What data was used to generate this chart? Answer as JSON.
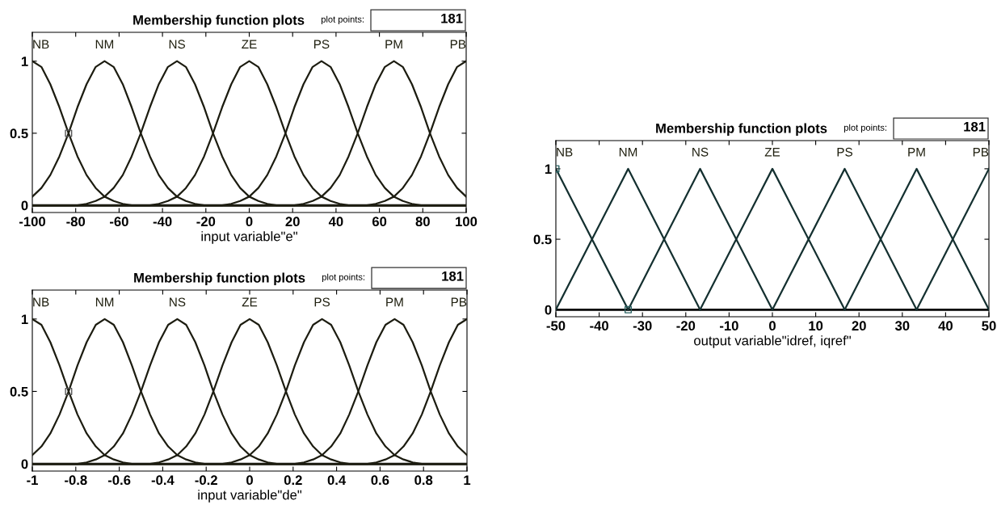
{
  "chart_data": [
    {
      "type": "line",
      "title": "Membership function plots",
      "xlabel": "input variable\"e\"",
      "annotations": [
        "plot points:",
        "181"
      ],
      "xlim": [
        -100,
        100
      ],
      "xticks": [
        -100,
        -80,
        -60,
        -40,
        -20,
        0,
        20,
        40,
        60,
        80,
        100
      ],
      "ylim": [
        -0.05,
        1.2
      ],
      "yticks": [
        0,
        0.5,
        1
      ],
      "grid": false,
      "legend": false,
      "marker": "none",
      "line_style": "solid",
      "ref_lines": [
        {
          "axis": "y",
          "value": 0,
          "label": null,
          "color": "#000000"
        }
      ],
      "x": [
        -100,
        -95.8,
        -91.7,
        -87.5,
        -83.3,
        -79.2,
        -75,
        -70.8,
        -66.7,
        -62.5,
        -58.3,
        -54.2,
        -50,
        -45.8,
        -41.7,
        -37.5,
        -33.3,
        -29.2,
        -25,
        -20.8,
        -16.7,
        -12.5,
        -8.3,
        -4.2,
        0,
        4.2,
        8.3,
        12.5,
        16.7,
        20.8,
        25,
        29.2,
        33.3,
        37.5,
        41.7,
        45.8,
        50,
        54.2,
        58.3,
        62.5,
        66.7,
        70.8,
        75,
        79.2,
        83.3,
        87.5,
        91.7,
        95.8,
        100
      ],
      "series": [
        {
          "name": "NB",
          "color": "#1c1c10",
          "values": [
            1,
            0.96,
            0.84,
            0.68,
            0.5,
            0.34,
            0.21,
            0.12,
            0.06,
            0.03,
            0.01,
            0,
            0,
            0,
            0,
            0,
            0,
            0,
            0,
            0,
            0,
            0,
            0,
            0,
            0,
            0,
            0,
            0,
            0,
            0,
            0,
            0,
            0,
            0,
            0,
            0,
            0,
            0,
            0,
            0,
            0,
            0,
            0,
            0,
            0,
            0,
            0,
            0,
            0
          ]
        },
        {
          "name": "NM",
          "color": "#1c1c10",
          "values": [
            0.06,
            0.12,
            0.21,
            0.34,
            0.5,
            0.68,
            0.84,
            0.96,
            1,
            0.96,
            0.84,
            0.68,
            0.5,
            0.34,
            0.21,
            0.12,
            0.06,
            0.03,
            0.01,
            0,
            0,
            0,
            0,
            0,
            0,
            0,
            0,
            0,
            0,
            0,
            0,
            0,
            0,
            0,
            0,
            0,
            0,
            0,
            0,
            0,
            0,
            0,
            0,
            0,
            0,
            0,
            0,
            0,
            0
          ]
        },
        {
          "name": "NS",
          "color": "#1c1c10",
          "values": [
            0,
            0,
            0,
            0,
            0,
            0,
            0.01,
            0.03,
            0.06,
            0.12,
            0.21,
            0.34,
            0.5,
            0.68,
            0.84,
            0.96,
            1,
            0.96,
            0.84,
            0.68,
            0.5,
            0.34,
            0.21,
            0.12,
            0.06,
            0.03,
            0.01,
            0,
            0,
            0,
            0,
            0,
            0,
            0,
            0,
            0,
            0,
            0,
            0,
            0,
            0,
            0,
            0,
            0,
            0,
            0,
            0,
            0,
            0
          ]
        },
        {
          "name": "ZE",
          "color": "#1c1c10",
          "values": [
            0,
            0,
            0,
            0,
            0,
            0,
            0,
            0,
            0,
            0,
            0,
            0,
            0,
            0,
            0.01,
            0.03,
            0.06,
            0.12,
            0.21,
            0.34,
            0.5,
            0.68,
            0.84,
            0.96,
            1,
            0.96,
            0.84,
            0.68,
            0.5,
            0.34,
            0.21,
            0.12,
            0.06,
            0.03,
            0.01,
            0,
            0,
            0,
            0,
            0,
            0,
            0,
            0,
            0,
            0,
            0,
            0,
            0,
            0
          ]
        },
        {
          "name": "PS",
          "color": "#1c1c10",
          "values": [
            0,
            0,
            0,
            0,
            0,
            0,
            0,
            0,
            0,
            0,
            0,
            0,
            0,
            0,
            0,
            0,
            0,
            0,
            0,
            0,
            0,
            0,
            0.01,
            0.03,
            0.06,
            0.12,
            0.21,
            0.34,
            0.5,
            0.68,
            0.84,
            0.96,
            1,
            0.96,
            0.84,
            0.68,
            0.5,
            0.34,
            0.21,
            0.12,
            0.06,
            0.03,
            0.01,
            0,
            0,
            0,
            0,
            0,
            0
          ]
        },
        {
          "name": "PM",
          "color": "#1c1c10",
          "values": [
            0,
            0,
            0,
            0,
            0,
            0,
            0,
            0,
            0,
            0,
            0,
            0,
            0,
            0,
            0,
            0,
            0,
            0,
            0,
            0,
            0,
            0,
            0,
            0,
            0,
            0,
            0,
            0,
            0,
            0,
            0.01,
            0.03,
            0.06,
            0.12,
            0.21,
            0.34,
            0.5,
            0.68,
            0.84,
            0.96,
            1,
            0.96,
            0.84,
            0.68,
            0.5,
            0.34,
            0.21,
            0.12,
            0.06
          ]
        },
        {
          "name": "PB",
          "color": "#1c1c10",
          "values": [
            0,
            0,
            0,
            0,
            0,
            0,
            0,
            0,
            0,
            0,
            0,
            0,
            0,
            0,
            0,
            0,
            0,
            0,
            0,
            0,
            0,
            0,
            0,
            0,
            0,
            0,
            0,
            0,
            0,
            0,
            0,
            0,
            0,
            0,
            0,
            0,
            0,
            0,
            0.01,
            0.03,
            0.06,
            0.12,
            0.21,
            0.34,
            0.5,
            0.68,
            0.84,
            0.96,
            1
          ]
        },
        {
          "type": "scatter",
          "marker": "square",
          "color": "#555555",
          "x": [
            -83.3
          ],
          "values": [
            0.5
          ]
        }
      ]
    },
    {
      "type": "line",
      "title": "Membership function plots",
      "xlabel": "input variable\"de\"",
      "annotations": [
        "plot points:",
        "181"
      ],
      "xlim": [
        -1,
        1
      ],
      "xticks": [
        -1,
        -0.8,
        -0.6,
        -0.4,
        -0.2,
        0,
        0.2,
        0.4,
        0.6,
        0.8,
        1
      ],
      "ylim": [
        -0.05,
        1.2
      ],
      "yticks": [
        0,
        0.5,
        1
      ],
      "grid": false,
      "legend": false,
      "marker": "none",
      "line_style": "solid",
      "ref_lines": [
        {
          "axis": "y",
          "value": 0,
          "label": null,
          "color": "#000000"
        }
      ],
      "x": [
        -1,
        -0.958,
        -0.917,
        -0.875,
        -0.833,
        -0.792,
        -0.75,
        -0.708,
        -0.667,
        -0.625,
        -0.583,
        -0.542,
        -0.5,
        -0.458,
        -0.417,
        -0.375,
        -0.333,
        -0.292,
        -0.25,
        -0.208,
        -0.167,
        -0.125,
        -0.083,
        -0.042,
        0,
        0.042,
        0.083,
        0.125,
        0.167,
        0.208,
        0.25,
        0.292,
        0.333,
        0.375,
        0.417,
        0.458,
        0.5,
        0.542,
        0.583,
        0.625,
        0.667,
        0.708,
        0.75,
        0.792,
        0.833,
        0.875,
        0.917,
        0.958,
        1
      ],
      "series": [
        {
          "name": "NB",
          "color": "#1c1c10",
          "values": [
            1,
            0.96,
            0.84,
            0.68,
            0.5,
            0.34,
            0.21,
            0.12,
            0.06,
            0.03,
            0.01,
            0,
            0,
            0,
            0,
            0,
            0,
            0,
            0,
            0,
            0,
            0,
            0,
            0,
            0,
            0,
            0,
            0,
            0,
            0,
            0,
            0,
            0,
            0,
            0,
            0,
            0,
            0,
            0,
            0,
            0,
            0,
            0,
            0,
            0,
            0,
            0,
            0,
            0
          ]
        },
        {
          "name": "NM",
          "color": "#1c1c10",
          "values": [
            0.06,
            0.12,
            0.21,
            0.34,
            0.5,
            0.68,
            0.84,
            0.96,
            1,
            0.96,
            0.84,
            0.68,
            0.5,
            0.34,
            0.21,
            0.12,
            0.06,
            0.03,
            0.01,
            0,
            0,
            0,
            0,
            0,
            0,
            0,
            0,
            0,
            0,
            0,
            0,
            0,
            0,
            0,
            0,
            0,
            0,
            0,
            0,
            0,
            0,
            0,
            0,
            0,
            0,
            0,
            0,
            0,
            0
          ]
        },
        {
          "name": "NS",
          "color": "#1c1c10",
          "values": [
            0,
            0,
            0,
            0,
            0,
            0,
            0.01,
            0.03,
            0.06,
            0.12,
            0.21,
            0.34,
            0.5,
            0.68,
            0.84,
            0.96,
            1,
            0.96,
            0.84,
            0.68,
            0.5,
            0.34,
            0.21,
            0.12,
            0.06,
            0.03,
            0.01,
            0,
            0,
            0,
            0,
            0,
            0,
            0,
            0,
            0,
            0,
            0,
            0,
            0,
            0,
            0,
            0,
            0,
            0,
            0,
            0,
            0,
            0
          ]
        },
        {
          "name": "ZE",
          "color": "#1c1c10",
          "values": [
            0,
            0,
            0,
            0,
            0,
            0,
            0,
            0,
            0,
            0,
            0,
            0,
            0,
            0,
            0.01,
            0.03,
            0.06,
            0.12,
            0.21,
            0.34,
            0.5,
            0.68,
            0.84,
            0.96,
            1,
            0.96,
            0.84,
            0.68,
            0.5,
            0.34,
            0.21,
            0.12,
            0.06,
            0.03,
            0.01,
            0,
            0,
            0,
            0,
            0,
            0,
            0,
            0,
            0,
            0,
            0,
            0,
            0,
            0
          ]
        },
        {
          "name": "PS",
          "color": "#1c1c10",
          "values": [
            0,
            0,
            0,
            0,
            0,
            0,
            0,
            0,
            0,
            0,
            0,
            0,
            0,
            0,
            0,
            0,
            0,
            0,
            0,
            0,
            0,
            0,
            0.01,
            0.03,
            0.06,
            0.12,
            0.21,
            0.34,
            0.5,
            0.68,
            0.84,
            0.96,
            1,
            0.96,
            0.84,
            0.68,
            0.5,
            0.34,
            0.21,
            0.12,
            0.06,
            0.03,
            0.01,
            0,
            0,
            0,
            0,
            0,
            0
          ]
        },
        {
          "name": "PM",
          "color": "#1c1c10",
          "values": [
            0,
            0,
            0,
            0,
            0,
            0,
            0,
            0,
            0,
            0,
            0,
            0,
            0,
            0,
            0,
            0,
            0,
            0,
            0,
            0,
            0,
            0,
            0,
            0,
            0,
            0,
            0,
            0,
            0,
            0,
            0.01,
            0.03,
            0.06,
            0.12,
            0.21,
            0.34,
            0.5,
            0.68,
            0.84,
            0.96,
            1,
            0.96,
            0.84,
            0.68,
            0.5,
            0.34,
            0.21,
            0.12,
            0.06
          ]
        },
        {
          "name": "PB",
          "color": "#1c1c10",
          "values": [
            0,
            0,
            0,
            0,
            0,
            0,
            0,
            0,
            0,
            0,
            0,
            0,
            0,
            0,
            0,
            0,
            0,
            0,
            0,
            0,
            0,
            0,
            0,
            0,
            0,
            0,
            0,
            0,
            0,
            0,
            0,
            0,
            0,
            0,
            0,
            0,
            0,
            0,
            0.01,
            0.03,
            0.06,
            0.12,
            0.21,
            0.34,
            0.5,
            0.68,
            0.84,
            0.96,
            1
          ]
        },
        {
          "type": "scatter",
          "marker": "square",
          "color": "#555555",
          "x": [
            -0.833
          ],
          "values": [
            0.5
          ]
        }
      ]
    },
    {
      "type": "line",
      "title": "Membership function plots",
      "xlabel": "output variable\"idref, iqref\"",
      "annotations": [
        "plot points:",
        "181"
      ],
      "xlim": [
        -50,
        50
      ],
      "xticks": [
        -50,
        -40,
        -30,
        -20,
        -10,
        0,
        10,
        20,
        30,
        40,
        50
      ],
      "ylim": [
        -0.05,
        1.2
      ],
      "yticks": [
        0,
        0.5,
        1
      ],
      "grid": false,
      "legend": false,
      "marker": "none",
      "line_style": "solid",
      "ref_lines": [
        {
          "axis": "y",
          "value": 0,
          "label": null,
          "color": "#000000"
        }
      ],
      "series": [
        {
          "name": "NB",
          "color": "#143030",
          "x": [
            -50,
            -33.3
          ],
          "values": [
            1,
            0
          ]
        },
        {
          "name": "NM",
          "color": "#143030",
          "x": [
            -50,
            -33.3,
            -16.7
          ],
          "values": [
            0,
            1,
            0
          ]
        },
        {
          "name": "NS",
          "color": "#143030",
          "x": [
            -33.3,
            -16.7,
            0
          ],
          "values": [
            0,
            1,
            0
          ]
        },
        {
          "name": "ZE",
          "color": "#143030",
          "x": [
            -16.7,
            0,
            16.7
          ],
          "values": [
            0,
            1,
            0
          ]
        },
        {
          "name": "PS",
          "color": "#143030",
          "x": [
            0,
            16.7,
            33.3
          ],
          "values": [
            0,
            1,
            0
          ]
        },
        {
          "name": "PM",
          "color": "#143030",
          "x": [
            16.7,
            33.3,
            50
          ],
          "values": [
            0,
            1,
            0
          ]
        },
        {
          "name": "PB",
          "color": "#143030",
          "x": [
            33.3,
            50
          ],
          "values": [
            0,
            1
          ]
        },
        {
          "type": "scatter",
          "marker": "square",
          "color": "#2a6060",
          "x": [
            -50,
            -33.3
          ],
          "values": [
            1,
            0
          ]
        }
      ]
    }
  ]
}
